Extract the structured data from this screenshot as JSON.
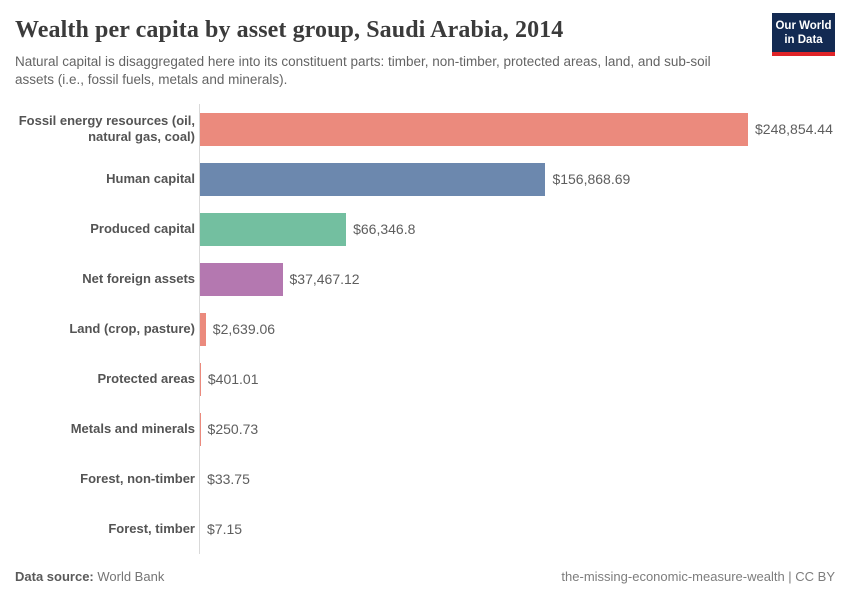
{
  "header": {
    "title": "Wealth per capita by asset group, Saudi Arabia, 2014",
    "subtitle": "Natural capital is disaggregated here into its constituent parts: timber, non-timber, protected areas, land, and sub-soil assets (i.e., fossil fuels, metals and minerals).",
    "logo": {
      "line1": "Our World",
      "line2": "in Data",
      "bg_color": "#132a52",
      "accent_color": "#e02428"
    }
  },
  "chart_data": {
    "type": "bar",
    "orientation": "horizontal",
    "title": "Wealth per capita by asset group, Saudi Arabia, 2014",
    "unit": "$ (US dollars) per capita",
    "xlim": [
      0,
      248854.44
    ],
    "grid": false,
    "legend": "none",
    "axis_color": "#d9d9d9",
    "categories": [
      "Fossil energy resources (oil, natural gas, coal)",
      "Human capital",
      "Produced capital",
      "Net foreign assets",
      "Land (crop, pasture)",
      "Protected areas",
      "Metals and minerals",
      "Forest, non-timber",
      "Forest, timber"
    ],
    "rows": [
      {
        "label": "Fossil energy resources (oil, natural gas, coal)",
        "value": 248854.44,
        "value_label": "$248,854.44",
        "color": "#eb8a7d"
      },
      {
        "label": "Human capital",
        "value": 156868.69,
        "value_label": "$156,868.69",
        "color": "#6c88ae"
      },
      {
        "label": "Produced capital",
        "value": 66346.8,
        "value_label": "$66,346.8",
        "color": "#73bfa0"
      },
      {
        "label": "Net foreign assets",
        "value": 37467.12,
        "value_label": "$37,467.12",
        "color": "#b478b0"
      },
      {
        "label": "Land (crop, pasture)",
        "value": 2639.06,
        "value_label": "$2,639.06",
        "color": "#eb8a7d"
      },
      {
        "label": "Protected areas",
        "value": 401.01,
        "value_label": "$401.01",
        "color": "#eb8a7d"
      },
      {
        "label": "Metals and minerals",
        "value": 250.73,
        "value_label": "$250.73",
        "color": "#eb8a7d"
      },
      {
        "label": "Forest, non-timber",
        "value": 33.75,
        "value_label": "$33.75",
        "color": "#eb8a7d"
      },
      {
        "label": "Forest, timber",
        "value": 7.15,
        "value_label": "$7.15",
        "color": "#eb8a7d"
      }
    ]
  },
  "footer": {
    "datasource_label": "Data source:",
    "datasource_value": " World Bank",
    "attribution": "the-missing-economic-measure-wealth | CC BY"
  }
}
